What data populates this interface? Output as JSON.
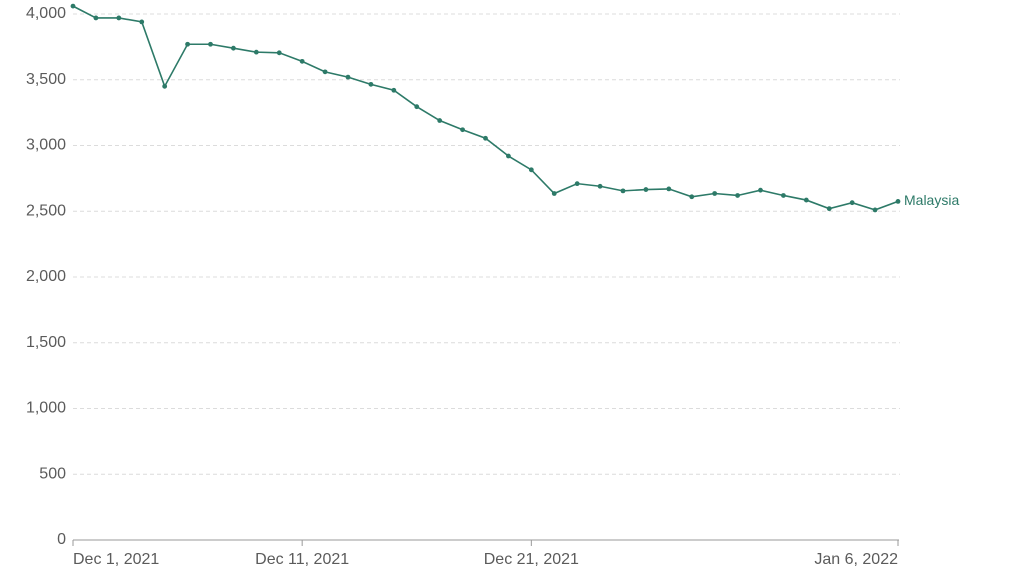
{
  "chart_data": {
    "type": "line",
    "categories": [
      "Dec 1, 2021",
      null,
      null,
      null,
      null,
      null,
      null,
      null,
      null,
      null,
      "Dec 11, 2021",
      null,
      null,
      null,
      null,
      null,
      null,
      null,
      null,
      null,
      "Dec 21, 2021",
      null,
      null,
      null,
      null,
      null,
      null,
      null,
      null,
      null,
      null,
      null,
      null,
      null,
      null,
      null,
      "Jan 6, 2022"
    ],
    "series": [
      {
        "name": "Malaysia",
        "color": "#2d7a68",
        "values": [
          4060,
          3970,
          3970,
          3940,
          3450,
          3770,
          3770,
          3740,
          3710,
          3705,
          3640,
          3560,
          3520,
          3465,
          3420,
          3295,
          3190,
          3120,
          3055,
          2920,
          2815,
          2635,
          2710,
          2690,
          2655,
          2665,
          2670,
          2610,
          2635,
          2620,
          2660,
          2620,
          2585,
          2520,
          2565,
          2510,
          2575
        ]
      }
    ],
    "ylim": [
      0,
      4000
    ],
    "yticks": [
      0,
      500,
      {
        "value": 1000,
        "label": "1,000"
      },
      {
        "value": 1500,
        "label": "1,500"
      },
      {
        "value": 2000,
        "label": "2,000"
      },
      {
        "value": 2500,
        "label": "2,500"
      },
      {
        "value": 3000,
        "label": "3,000"
      },
      {
        "value": 3500,
        "label": "3,500"
      },
      {
        "value": 4000,
        "label": "4,000"
      }
    ],
    "grid": true
  }
}
